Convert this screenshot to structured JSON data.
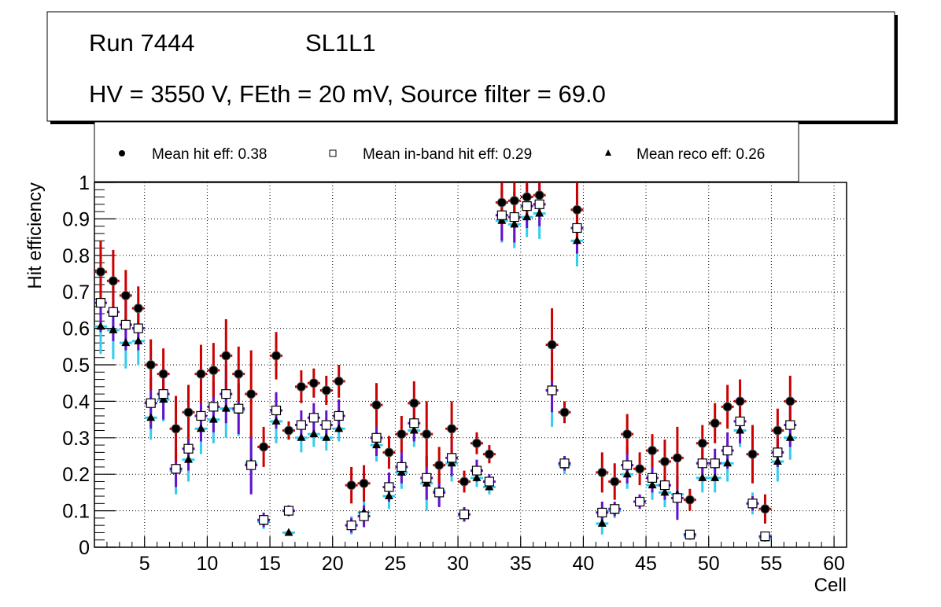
{
  "title_box": {
    "run_label": "Run 7444",
    "layer_label": "SL1L1",
    "conditions": "HV = 3550 V, FEth = 20 mV, Source filter = 69.0"
  },
  "chart_data": {
    "type": "scatter",
    "title": "Run 7444 SL1L1 — HV = 3550 V, FEth = 20 mV, Source filter = 69.0",
    "xlabel": "Cell",
    "ylabel": "Hit efficiency",
    "xlim": [
      1,
      61
    ],
    "ylim": [
      0,
      1
    ],
    "grid": true,
    "legend_position": "top",
    "x_ticks": [
      5,
      10,
      15,
      20,
      25,
      30,
      35,
      40,
      45,
      50,
      55,
      60
    ],
    "x_tick_labels": [
      "5",
      "10",
      "15",
      "20",
      "25",
      "30",
      "35",
      "40",
      "45",
      "50",
      "55",
      "60"
    ],
    "y_ticks": [
      0,
      0.1,
      0.2,
      0.3,
      0.4,
      0.5,
      0.6,
      0.7,
      0.8,
      0.9,
      1
    ],
    "y_tick_labels": [
      "0",
      "0.1",
      "0.2",
      "0.3",
      "0.4",
      "0.5",
      "0.6",
      "0.7",
      "0.8",
      "0.9",
      "1"
    ],
    "cells": [
      1,
      2,
      3,
      4,
      5,
      6,
      7,
      8,
      9,
      10,
      11,
      12,
      13,
      14,
      15,
      16,
      17,
      18,
      19,
      20,
      21,
      22,
      23,
      24,
      25,
      26,
      27,
      28,
      29,
      30,
      31,
      32,
      33,
      34,
      35,
      36,
      37,
      38,
      39,
      41,
      42,
      43,
      44,
      45,
      46,
      47,
      48,
      49,
      50,
      51,
      52,
      53,
      54,
      55,
      56
    ],
    "series": [
      {
        "name": "Mean hit eff",
        "legend_label": "Mean hit  eff: 0.38",
        "mean": 0.38,
        "marker": "circle",
        "color": "#cc0000",
        "values": [
          0.755,
          0.73,
          0.69,
          0.655,
          0.5,
          0.475,
          0.325,
          0.37,
          0.475,
          0.485,
          0.525,
          0.475,
          0.42,
          0.275,
          0.525,
          0.32,
          0.44,
          0.45,
          0.43,
          0.455,
          0.17,
          0.175,
          0.39,
          0.26,
          0.31,
          0.395,
          0.31,
          0.225,
          0.325,
          0.18,
          0.285,
          0.255,
          0.945,
          0.95,
          0.96,
          0.965,
          0.555,
          0.37,
          0.925,
          0.205,
          0.18,
          0.31,
          0.215,
          0.265,
          0.235,
          0.245,
          0.13,
          0.285,
          0.34,
          0.385,
          0.4,
          0.255,
          0.105,
          0.32,
          0.4
        ],
        "errors": [
          0.085,
          0.085,
          0.07,
          0.06,
          0.07,
          0.07,
          0.09,
          0.075,
          0.08,
          0.075,
          0.1,
          0.075,
          0.12,
          0.055,
          0.065,
          0.025,
          0.045,
          0.04,
          0.04,
          0.045,
          0.05,
          0.05,
          0.06,
          0.045,
          0.05,
          0.06,
          0.09,
          0.05,
          0.075,
          0.03,
          0.03,
          0.025,
          0.06,
          0.06,
          0.05,
          0.05,
          0.1,
          0.03,
          0.08,
          0.055,
          0.05,
          0.055,
          0.045,
          0.045,
          0.06,
          0.085,
          0.03,
          0.05,
          0.055,
          0.06,
          0.06,
          0.08,
          0.04,
          0.06,
          0.07
        ]
      },
      {
        "name": "Mean in-band hit eff",
        "legend_label": "Mean in-band hit eff: 0.29",
        "mean": 0.29,
        "marker": "open-square",
        "color": "#6611cc",
        "values": [
          0.67,
          0.645,
          0.61,
          0.6,
          0.395,
          0.42,
          0.215,
          0.27,
          0.36,
          0.385,
          0.42,
          0.38,
          0.225,
          0.075,
          0.375,
          0.1,
          0.335,
          0.355,
          0.335,
          0.36,
          0.06,
          0.085,
          0.3,
          0.165,
          0.22,
          0.34,
          0.19,
          0.15,
          0.245,
          0.09,
          0.21,
          0.18,
          0.91,
          0.905,
          0.935,
          0.94,
          0.43,
          0.23,
          0.875,
          0.095,
          0.105,
          0.225,
          0.125,
          0.19,
          0.17,
          0.135,
          0.035,
          0.23,
          0.23,
          0.265,
          0.345,
          0.12,
          0.03,
          0.26,
          0.335
        ],
        "errors": [
          0.08,
          0.08,
          0.07,
          0.06,
          0.07,
          0.07,
          0.05,
          0.06,
          0.07,
          0.07,
          0.08,
          0.07,
          0.08,
          0.02,
          0.05,
          0.015,
          0.04,
          0.04,
          0.04,
          0.045,
          0.02,
          0.03,
          0.05,
          0.04,
          0.045,
          0.05,
          0.06,
          0.04,
          0.05,
          0.02,
          0.03,
          0.02,
          0.07,
          0.07,
          0.06,
          0.06,
          0.06,
          0.02,
          0.07,
          0.03,
          0.02,
          0.05,
          0.02,
          0.04,
          0.04,
          0.06,
          0.01,
          0.04,
          0.04,
          0.05,
          0.06,
          0.02,
          0.01,
          0.04,
          0.06
        ]
      },
      {
        "name": "Mean reco eff",
        "legend_label": "Mean reco eff: 0.26",
        "mean": 0.26,
        "marker": "triangle",
        "color": "#33ccee",
        "values": [
          0.605,
          0.595,
          0.56,
          0.565,
          0.355,
          0.405,
          0.21,
          0.24,
          0.325,
          0.35,
          0.38,
          0.375,
          0.23,
          0.07,
          0.345,
          0.04,
          0.3,
          0.31,
          0.3,
          0.325,
          0.06,
          0.095,
          0.28,
          0.14,
          0.205,
          0.32,
          0.175,
          0.155,
          0.23,
          0.09,
          0.19,
          0.165,
          0.895,
          0.885,
          0.905,
          0.915,
          0.43,
          0.225,
          0.84,
          0.065,
          0.1,
          0.2,
          0.125,
          0.17,
          0.15,
          0.145,
          0.03,
          0.19,
          0.19,
          0.23,
          0.32,
          0.12,
          0.025,
          0.235,
          0.3
        ],
        "errors": [
          0.075,
          0.08,
          0.07,
          0.065,
          0.06,
          0.06,
          0.065,
          0.06,
          0.07,
          0.065,
          0.08,
          0.07,
          0.08,
          0.02,
          0.06,
          0.005,
          0.04,
          0.035,
          0.035,
          0.035,
          0.025,
          0.035,
          0.045,
          0.035,
          0.045,
          0.045,
          0.075,
          0.04,
          0.05,
          0.02,
          0.025,
          0.02,
          0.06,
          0.065,
          0.055,
          0.07,
          0.1,
          0.025,
          0.07,
          0.03,
          0.02,
          0.04,
          0.015,
          0.04,
          0.04,
          0.06,
          0.01,
          0.04,
          0.04,
          0.05,
          0.045,
          0.03,
          0.01,
          0.055,
          0.06
        ]
      }
    ]
  }
}
